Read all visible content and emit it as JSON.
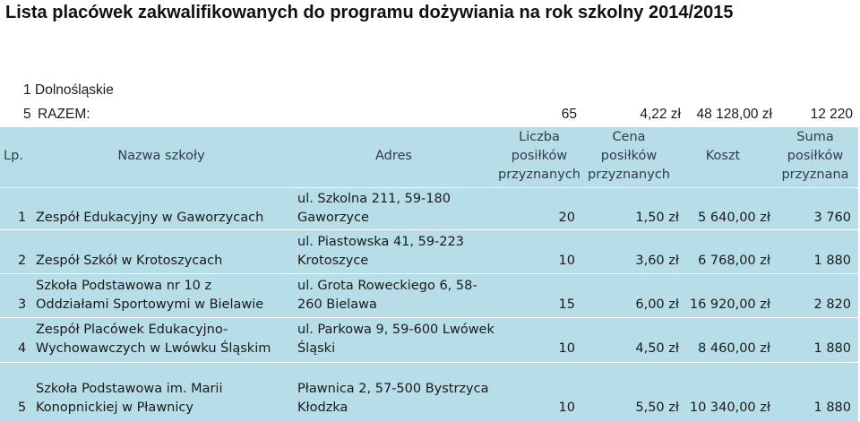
{
  "title": "Lista placówek zakwalifikowanych do programu dożywiania na rok szkolny 2014/2015",
  "region": {
    "number": "1",
    "name": "Dolnośląskie"
  },
  "summary": {
    "number": "5",
    "label": "RAZEM:",
    "meals": "65",
    "price": "4,22 zł",
    "cost": "48 128,00 zł",
    "total_meals": "12 220"
  },
  "headers": {
    "lp": "Lp.",
    "name": "Nazwa szkoły",
    "address": "Adres",
    "meals_l1": "Liczba",
    "meals_l2": "posiłków",
    "meals_l3": "przyznanych",
    "price_l1": "Cena",
    "price_l2": "posiłków",
    "price_l3": "przyznanych",
    "cost": "Koszt",
    "sum_l1": "Suma",
    "sum_l2": "posiłków",
    "sum_l3": "przyznana"
  },
  "rows": [
    {
      "lp": "1",
      "name_l1": "",
      "name_l2": "Zespół Edukacyjny w Gaworzycach",
      "addr_l1": "ul. Szkolna 211, 59-180",
      "addr_l2": "Gaworzyce",
      "meals": "20",
      "price": "1,50 zł",
      "cost": "5 640,00 zł",
      "sum": "3 760"
    },
    {
      "lp": "2",
      "name_l1": "",
      "name_l2": "Zespół Szkół w Krotoszycach",
      "addr_l1": "ul. Piastowska 41, 59-223",
      "addr_l2": "Krotoszyce",
      "meals": "10",
      "price": "3,60 zł",
      "cost": "6 768,00 zł",
      "sum": "1 880"
    },
    {
      "lp": "3",
      "name_l1": "Szkoła Podstawowa nr 10 z",
      "name_l2": "Oddziałami Sportowymi w Bielawie",
      "addr_l1": "ul. Grota Roweckiego 6, 58-",
      "addr_l2": "260 Bielawa",
      "meals": "15",
      "price": "6,00 zł",
      "cost": "16 920,00 zł",
      "sum": "2 820"
    },
    {
      "lp": "4",
      "name_l1": "Zespół Placówek Edukacyjno-",
      "name_l2": "Wychowawczych w Lwówku Śląskim",
      "addr_l1": "ul. Parkowa 9, 59-600 Lwówek",
      "addr_l2": "Śląski",
      "meals": "10",
      "price": "4,50 zł",
      "cost": "8 460,00 zł",
      "sum": "1 880"
    },
    {
      "lp": "5",
      "name_l1": "Szkoła Podstawowa im. Marii",
      "name_l2": "Konopnickiej w Pławnicy",
      "addr_l1": "Pławnica 2, 57-500 Bystrzyca",
      "addr_l2": "Kłodzka",
      "meals": "10",
      "price": "5,50 zł",
      "cost": "10 340,00 zł",
      "sum": "1 880"
    }
  ]
}
